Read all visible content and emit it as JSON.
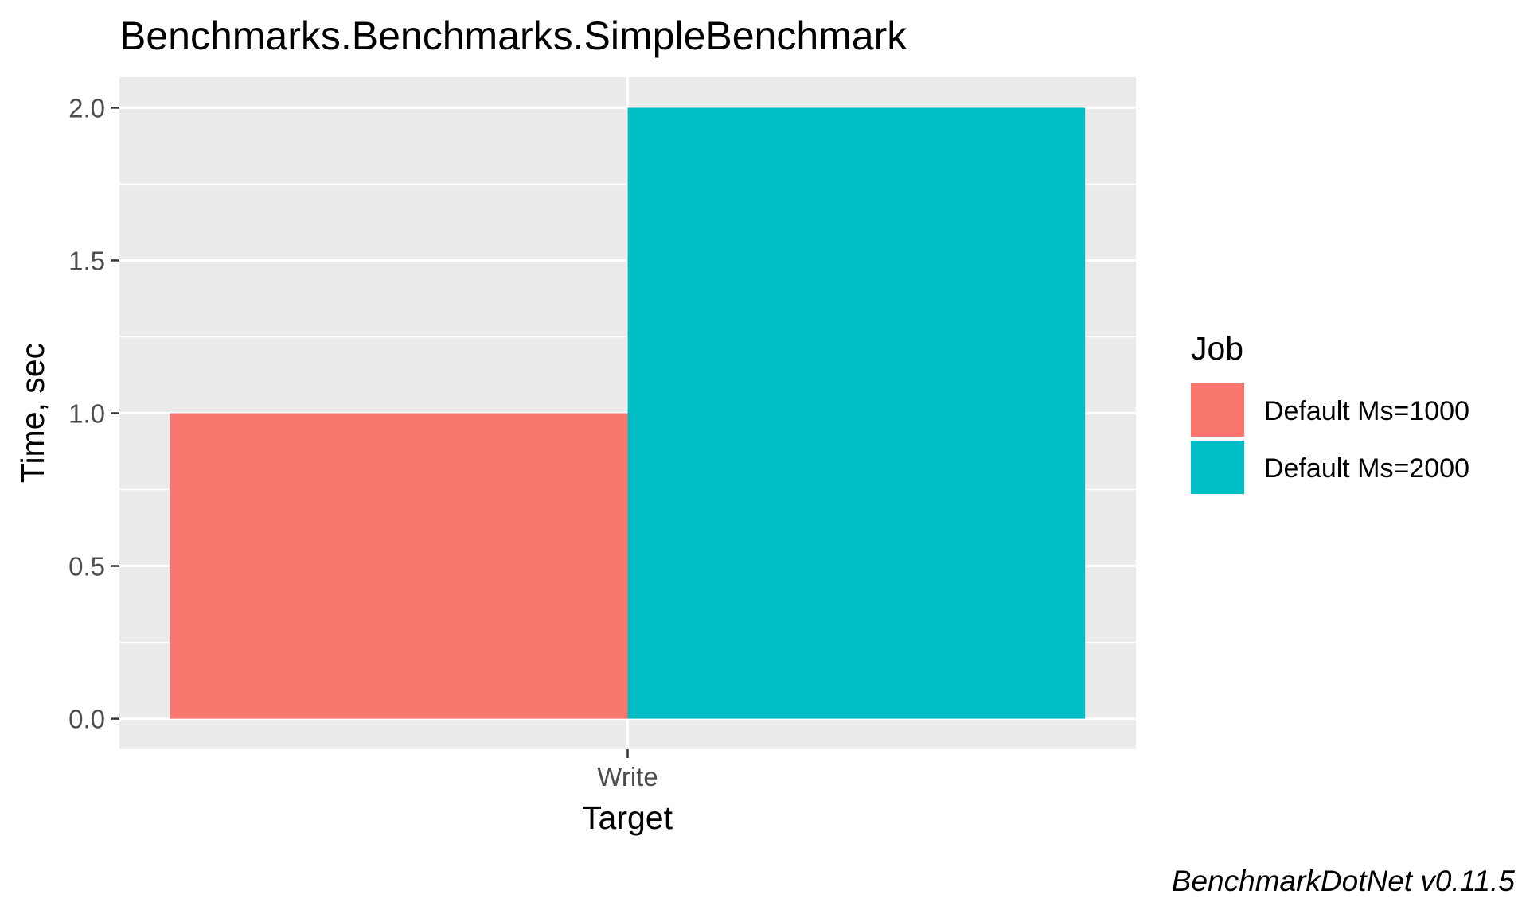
{
  "chart_data": {
    "type": "bar",
    "title": "Benchmarks.Benchmarks.SimpleBenchmark",
    "xlabel": "Target",
    "ylabel": "Time, sec",
    "categories": [
      "Write"
    ],
    "series": [
      {
        "name": "Default Ms=1000",
        "values": [
          1.0
        ],
        "color": "#F8766D"
      },
      {
        "name": "Default Ms=2000",
        "values": [
          2.0
        ],
        "color": "#00BFC4"
      }
    ],
    "ylim": [
      -0.1,
      2.1
    ],
    "yticks": [
      0.0,
      0.5,
      1.0,
      1.5,
      2.0
    ],
    "ytick_labels": [
      "0.0",
      "0.5",
      "1.0",
      "1.5",
      "2.0"
    ],
    "grid": true,
    "legend": {
      "title": "Job",
      "placement": "right"
    },
    "caption": "BenchmarkDotNet v0.11.5"
  }
}
